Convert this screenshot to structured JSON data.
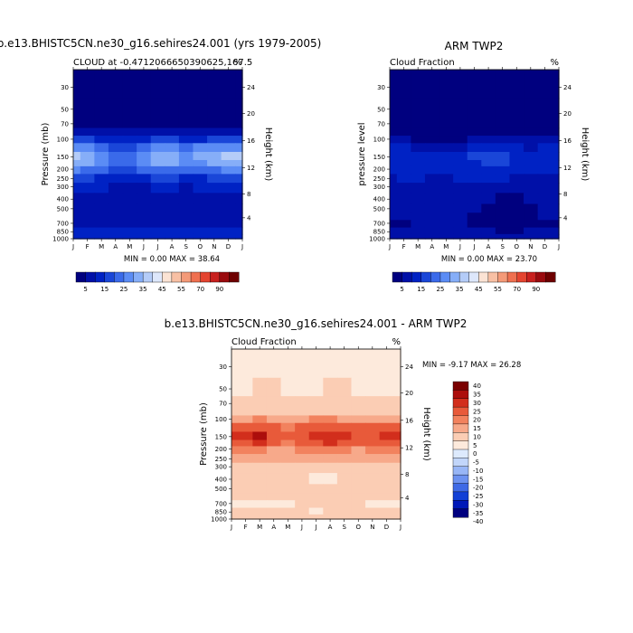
{
  "colors": {
    "model_scale": [
      "#00007f",
      "#0010a8",
      "#0022c4",
      "#1a46d8",
      "#3a6aea",
      "#5b8cf5",
      "#86aef8",
      "#b4ccf8",
      "#dde7fb",
      "#fbe3d4",
      "#f8c0a4",
      "#f49a78",
      "#ef7050",
      "#e44430",
      "#c8201e",
      "#9a0a0e",
      "#6e0000"
    ],
    "diff_scale": [
      "#00007f",
      "#0018b8",
      "#1240d6",
      "#3f6ae6",
      "#6d92f0",
      "#98b6f6",
      "#c2d6fa",
      "#ddeafd",
      "#fdeadc",
      "#fbcdb4",
      "#f7a98a",
      "#f2825e",
      "#e85a3a",
      "#d22e1c",
      "#ac0e0c",
      "#7a0000"
    ]
  },
  "chart_data": [
    {
      "id": "model",
      "type": "heatmap",
      "title": "b.e13.BHISTC5CN.ne30_g16.sehires24.001 (yrs 1979-2005)",
      "left_string": "CLOUD at -0.4712066650390625,167.5",
      "right_string": "%",
      "xlabel": "",
      "ylabel": "Pressure (mb)",
      "y2label": "Height (km)",
      "x_ticks": [
        "J",
        "F",
        "M",
        "A",
        "M",
        "J",
        "J",
        "A",
        "S",
        "O",
        "N",
        "D",
        "J"
      ],
      "pressure_ticks": [
        30,
        50,
        70,
        100,
        150,
        200,
        250,
        300,
        400,
        500,
        700,
        850,
        1000
      ],
      "pressure_range": [
        20,
        1000
      ],
      "height_ticks": [
        24,
        20,
        16,
        12,
        8,
        4
      ],
      "stats": "MIN =   0.00 MAX =  38.64",
      "levels": [
        5,
        10,
        15,
        20,
        25,
        30,
        35,
        40,
        45,
        50,
        55,
        60,
        65,
        70,
        80,
        90
      ],
      "colorbar_labels": [
        "5",
        "15",
        "25",
        "35",
        "45",
        "55",
        "70",
        "90"
      ],
      "months": [
        1,
        2,
        3,
        4,
        5,
        6,
        7,
        8,
        9,
        10,
        11,
        12,
        13
      ],
      "pressure": [
        20,
        30,
        50,
        70,
        85,
        100,
        120,
        150,
        175,
        200,
        250,
        300,
        400,
        500,
        600,
        700,
        850,
        950,
        1000
      ],
      "values": [
        [
          0,
          0,
          0,
          0,
          0,
          0,
          0,
          0,
          0,
          0,
          0,
          0,
          0
        ],
        [
          0,
          0,
          0,
          0,
          0,
          0,
          0,
          0,
          0,
          0,
          0,
          0,
          0
        ],
        [
          1,
          1,
          1,
          1,
          1,
          1,
          1,
          1,
          1,
          1,
          1,
          1,
          1
        ],
        [
          2,
          2,
          2,
          2,
          2,
          2,
          2,
          2,
          2,
          2,
          2,
          2,
          2
        ],
        [
          8,
          7,
          6,
          5,
          5,
          6,
          7,
          7,
          6,
          6,
          7,
          8,
          8
        ],
        [
          17,
          16,
          13,
          11,
          11,
          13,
          16,
          16,
          14,
          14,
          16,
          17,
          17
        ],
        [
          29,
          27,
          23,
          19,
          19,
          23,
          27,
          27,
          24,
          25,
          27,
          29,
          29
        ],
        [
          35,
          33,
          28,
          23,
          23,
          28,
          33,
          33,
          29,
          30,
          33,
          35,
          35
        ],
        [
          31,
          30,
          26,
          22,
          21,
          26,
          31,
          30,
          27,
          28,
          31,
          31,
          31
        ],
        [
          25,
          24,
          21,
          18,
          18,
          21,
          24,
          24,
          21,
          22,
          24,
          25,
          25
        ],
        [
          15,
          15,
          14,
          13,
          13,
          14,
          15,
          15,
          14,
          14,
          15,
          15,
          15
        ],
        [
          10,
          10,
          10,
          9,
          9,
          9,
          10,
          10,
          9,
          10,
          10,
          10,
          10
        ],
        [
          7,
          7,
          6,
          6,
          6,
          6,
          6,
          6,
          6,
          6,
          7,
          7,
          7
        ],
        [
          8,
          8,
          8,
          7,
          7,
          7,
          8,
          8,
          8,
          8,
          8,
          8,
          8
        ],
        [
          9,
          9,
          9,
          8,
          8,
          8,
          8,
          8,
          8,
          8,
          8,
          9,
          9
        ],
        [
          6,
          6,
          6,
          6,
          6,
          6,
          6,
          6,
          5,
          5,
          6,
          6,
          6
        ],
        [
          10,
          10,
          10,
          10,
          10,
          10,
          10,
          10,
          10,
          10,
          10,
          10,
          10
        ],
        [
          13,
          13,
          13,
          13,
          13,
          13,
          13,
          13,
          13,
          13,
          13,
          13,
          13
        ],
        [
          13,
          13,
          13,
          13,
          13,
          13,
          13,
          13,
          13,
          13,
          13,
          13,
          13
        ]
      ]
    },
    {
      "id": "obs",
      "type": "heatmap",
      "title": "ARM TWP2",
      "left_string": "Cloud Fraction",
      "right_string": "%",
      "xlabel": "",
      "ylabel": "pressure level",
      "y2label": "Height (km)",
      "x_ticks": [
        "J",
        "F",
        "M",
        "A",
        "M",
        "J",
        "J",
        "A",
        "S",
        "O",
        "N",
        "D",
        "J"
      ],
      "pressure_ticks": [
        30,
        50,
        70,
        100,
        150,
        200,
        250,
        300,
        400,
        500,
        700,
        850,
        1000
      ],
      "pressure_range": [
        20,
        1000
      ],
      "height_ticks": [
        24,
        20,
        16,
        12,
        8,
        4
      ],
      "stats": "MIN =   0.00 MAX =  23.70",
      "levels": [
        5,
        10,
        15,
        20,
        25,
        30,
        35,
        40,
        45,
        50,
        55,
        60,
        65,
        70,
        80,
        90
      ],
      "colorbar_labels": [
        "5",
        "15",
        "25",
        "35",
        "45",
        "55",
        "70",
        "90"
      ],
      "months": [
        1,
        2,
        3,
        4,
        5,
        6,
        7,
        8,
        9,
        10,
        11,
        12,
        13
      ],
      "pressure": [
        20,
        30,
        50,
        70,
        85,
        100,
        120,
        150,
        175,
        200,
        250,
        300,
        400,
        500,
        600,
        700,
        850,
        950,
        1000
      ],
      "values": [
        [
          0,
          0,
          0,
          0,
          0,
          0,
          0,
          0,
          0,
          0,
          0,
          0,
          0
        ],
        [
          0,
          0,
          0,
          0,
          0,
          0,
          0,
          0,
          0,
          0,
          0,
          0,
          0
        ],
        [
          0,
          0,
          0,
          0,
          0,
          0,
          0,
          0,
          0,
          0,
          0,
          0,
          0
        ],
        [
          1,
          1,
          1,
          1,
          1,
          1,
          1,
          1,
          1,
          1,
          1,
          1,
          1
        ],
        [
          2,
          2,
          1,
          1,
          1,
          1,
          2,
          2,
          2,
          2,
          2,
          2,
          2
        ],
        [
          5,
          5,
          4,
          3,
          3,
          4,
          5,
          6,
          5,
          5,
          5,
          5,
          5
        ],
        [
          10,
          11,
          9,
          7,
          7,
          8,
          11,
          13,
          12,
          10,
          9,
          10,
          10
        ],
        [
          13,
          14,
          12,
          10,
          10,
          12,
          16,
          19,
          17,
          13,
          12,
          13,
          13
        ],
        [
          12,
          13,
          12,
          11,
          10,
          12,
          14,
          17,
          15,
          12,
          11,
          12,
          12
        ],
        [
          11,
          12,
          11,
          10,
          10,
          11,
          12,
          14,
          13,
          11,
          10,
          11,
          11
        ],
        [
          9,
          10,
          10,
          9,
          9,
          10,
          10,
          11,
          10,
          9,
          9,
          9,
          9
        ],
        [
          8,
          8,
          8,
          8,
          8,
          8,
          8,
          8,
          7,
          6,
          7,
          8,
          8
        ],
        [
          7,
          7,
          8,
          8,
          8,
          7,
          6,
          5,
          4,
          4,
          5,
          6,
          7
        ],
        [
          6,
          6,
          7,
          7,
          7,
          6,
          5,
          4,
          3,
          3,
          4,
          5,
          6
        ],
        [
          5,
          5,
          6,
          6,
          6,
          6,
          4,
          4,
          3,
          3,
          4,
          5,
          5
        ],
        [
          4,
          4,
          5,
          5,
          5,
          5,
          4,
          3,
          3,
          3,
          4,
          4,
          4
        ],
        [
          5,
          5,
          5,
          5,
          5,
          5,
          5,
          5,
          4,
          4,
          5,
          5,
          5
        ],
        [
          8,
          8,
          8,
          8,
          8,
          8,
          8,
          8,
          8,
          8,
          8,
          8,
          8
        ],
        [
          9,
          9,
          9,
          9,
          9,
          9,
          9,
          9,
          9,
          9,
          9,
          9,
          9
        ]
      ]
    },
    {
      "id": "diff",
      "type": "heatmap",
      "title": "b.e13.BHISTC5CN.ne30_g16.sehires24.001 - ARM TWP2",
      "left_string": "Cloud Fraction",
      "right_string": "%",
      "xlabel": "",
      "ylabel": "Pressure (mb)",
      "y2label": "Height (km)",
      "x_ticks": [
        "J",
        "F",
        "M",
        "A",
        "M",
        "J",
        "J",
        "A",
        "S",
        "O",
        "N",
        "D",
        "J"
      ],
      "pressure_ticks": [
        30,
        50,
        70,
        100,
        150,
        200,
        250,
        300,
        400,
        500,
        700,
        850,
        1000
      ],
      "pressure_range": [
        20,
        1000
      ],
      "height_ticks": [
        24,
        20,
        16,
        12,
        8,
        4
      ],
      "stats": "MIN =  -9.17 MAX =  26.28",
      "levels": [
        -40,
        -35,
        -30,
        -25,
        -20,
        -15,
        -10,
        -5,
        0,
        5,
        10,
        15,
        20,
        25,
        30,
        35,
        40
      ],
      "colorbar_labels": [
        "40",
        "35",
        "30",
        "25",
        "20",
        "15",
        "10",
        "5",
        "0",
        "-5",
        "-10",
        "-15",
        "-20",
        "-25",
        "-30",
        "-35",
        "-40"
      ],
      "months": [
        1,
        2,
        3,
        4,
        5,
        6,
        7,
        8,
        9,
        10,
        11,
        12,
        13
      ],
      "pressure": [
        20,
        30,
        50,
        70,
        85,
        100,
        120,
        150,
        175,
        200,
        250,
        300,
        400,
        500,
        600,
        700,
        850,
        950,
        1000
      ],
      "values": [
        [
          -1,
          -1,
          -1,
          -1,
          -1,
          -1,
          -1,
          -1,
          -1,
          -1,
          -1,
          -1,
          -1
        ],
        [
          -1,
          -1,
          -1,
          -1,
          -1,
          -1,
          -1,
          -1,
          -1,
          -1,
          -1,
          -1,
          -1
        ],
        [
          -1,
          -1,
          1,
          1,
          -1,
          -1,
          -1,
          1,
          1,
          -1,
          -1,
          -1,
          -1
        ],
        [
          2,
          2,
          2,
          2,
          2,
          2,
          2,
          2,
          2,
          2,
          2,
          2,
          2
        ],
        [
          3,
          3,
          4,
          3,
          3,
          4,
          4,
          4,
          3,
          3,
          3,
          3,
          3
        ],
        [
          8,
          9,
          10,
          8,
          8,
          9,
          10,
          10,
          9,
          9,
          9,
          9,
          8
        ],
        [
          16,
          17,
          18,
          15,
          14,
          16,
          18,
          18,
          16,
          15,
          16,
          17,
          16
        ],
        [
          20,
          22,
          25,
          17,
          15,
          18,
          22,
          24,
          20,
          16,
          18,
          24,
          22
        ],
        [
          18,
          19,
          20,
          15,
          13,
          16,
          19,
          20,
          17,
          15,
          17,
          19,
          18
        ],
        [
          12,
          12,
          11,
          9,
          8,
          10,
          12,
          12,
          10,
          9,
          11,
          12,
          12
        ],
        [
          6,
          6,
          5,
          5,
          5,
          5,
          6,
          6,
          5,
          5,
          6,
          6,
          6
        ],
        [
          2,
          2,
          2,
          1,
          1,
          1,
          2,
          2,
          2,
          2,
          2,
          2,
          2
        ],
        [
          1,
          1,
          1,
          1,
          1,
          1,
          -1,
          -1,
          1,
          1,
          1,
          1,
          1
        ],
        [
          2,
          2,
          2,
          1,
          1,
          1,
          2,
          4,
          3,
          2,
          2,
          2,
          2
        ],
        [
          1,
          1,
          1,
          1,
          1,
          1,
          1,
          1,
          1,
          1,
          1,
          1,
          1
        ],
        [
          -1,
          -1,
          -1,
          -1,
          -1,
          1,
          1,
          1,
          1,
          1,
          -1,
          -1,
          -1
        ],
        [
          1,
          1,
          1,
          1,
          1,
          1,
          -1,
          1,
          1,
          1,
          1,
          1,
          1
        ],
        [
          3,
          3,
          3,
          3,
          3,
          3,
          3,
          3,
          3,
          3,
          3,
          3,
          3
        ],
        [
          4,
          4,
          4,
          4,
          4,
          4,
          4,
          4,
          4,
          4,
          4,
          4,
          4
        ]
      ]
    }
  ]
}
